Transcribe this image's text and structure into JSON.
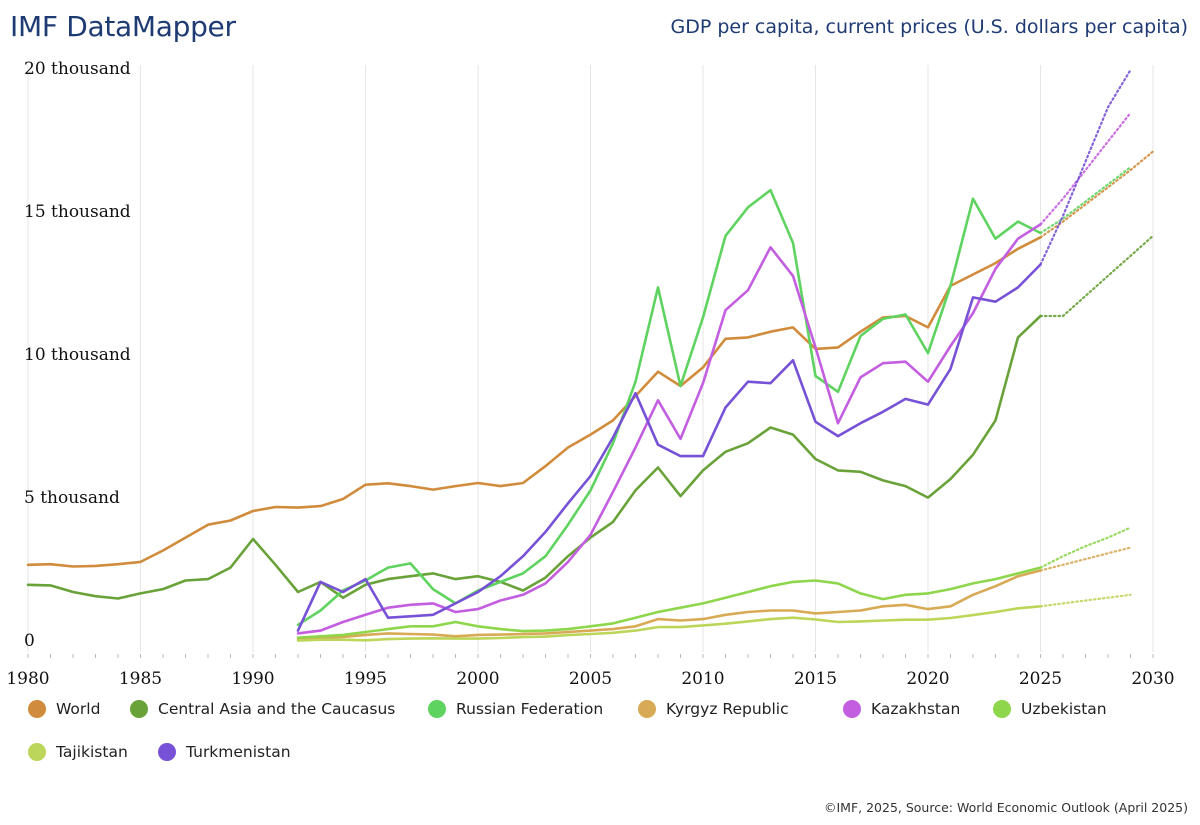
{
  "header": {
    "brand": "IMF DataMapper",
    "title": "GDP per capita, current prices (U.S. dollars per capita)"
  },
  "footer": {
    "credit": "©IMF, 2025, Source: World Economic Outlook (April 2025)"
  },
  "chart_data": {
    "type": "line",
    "xlim": [
      1980,
      2030
    ],
    "ylim": [
      0,
      20000
    ],
    "x_ticks": [
      "1980",
      "1985",
      "1990",
      "1995",
      "2000",
      "2005",
      "2010",
      "2015",
      "2020",
      "2025",
      "2030"
    ],
    "y_ticks": [
      {
        "value": 0,
        "label": "0"
      },
      {
        "value": 5000,
        "label": "5 thousand"
      },
      {
        "value": 10000,
        "label": "10 thousand"
      },
      {
        "value": 15000,
        "label": "15 thousand"
      },
      {
        "value": 20000,
        "label": "20 thousand"
      }
    ],
    "grid": "vertical",
    "legend_position": "bottom",
    "projection_start": 2025,
    "series": [
      {
        "name": "World",
        "color": "#d08c3c",
        "start": 1980,
        "values": [
          2700,
          2720,
          2640,
          2660,
          2720,
          2800,
          3200,
          3650,
          4100,
          4250,
          4580,
          4720,
          4700,
          4750,
          5000,
          5500,
          5550,
          5450,
          5330,
          5450,
          5560,
          5450,
          5560,
          6150,
          6800,
          7250,
          7750,
          8600,
          9450,
          8950,
          9600,
          10600,
          10650,
          10850,
          11000,
          10250,
          10300,
          10850,
          11350,
          11400,
          11000,
          12450,
          12850,
          13250,
          13750,
          14150,
          14700,
          15300,
          15900,
          16500,
          17150
        ]
      },
      {
        "name": "Central Asia and the Caucasus",
        "color": "#6aa23a",
        "start": 1980,
        "values": [
          2000,
          1980,
          1750,
          1600,
          1520,
          1700,
          1850,
          2150,
          2200,
          2600,
          3600,
          2700,
          1750,
          2100,
          1550,
          2000,
          2200,
          2300,
          2400,
          2200,
          2300,
          2100,
          1800,
          2250,
          3000,
          3650,
          4200,
          5300,
          6100,
          5100,
          6000,
          6650,
          6950,
          7500,
          7250,
          6400,
          6000,
          5950,
          5650,
          5450,
          5050,
          5700,
          6550,
          7750,
          10650,
          11400,
          11400,
          12100,
          12800,
          13500,
          14200
        ]
      },
      {
        "name": "Russian Federation",
        "color": "#5fd35f",
        "start": 1992,
        "values": [
          600,
          1100,
          1800,
          2150,
          2600,
          2750,
          1850,
          1350,
          1800,
          2100,
          2400,
          3000,
          4100,
          5300,
          6950,
          9100,
          12400,
          8950,
          11350,
          14200,
          15200,
          15800,
          13950,
          9300,
          8750,
          10700,
          11300,
          11450,
          10100,
          12450,
          15500,
          14100,
          14700,
          14300,
          14800,
          15400,
          16000,
          16600
        ]
      },
      {
        "name": "Kyrgyz Republic",
        "color": "#d8aa55",
        "start": 1992,
        "values": [
          100,
          150,
          180,
          250,
          300,
          280,
          260,
          200,
          250,
          260,
          280,
          300,
          350,
          400,
          450,
          550,
          800,
          750,
          800,
          950,
          1050,
          1100,
          1100,
          1000,
          1050,
          1100,
          1250,
          1300,
          1150,
          1250,
          1650,
          1950,
          2300,
          2500,
          2700,
          2900,
          3100,
          3300
        ]
      },
      {
        "name": "Kazakhstan",
        "color": "#c35ee0",
        "start": 1992,
        "values": [
          300,
          400,
          700,
          950,
          1200,
          1300,
          1350,
          1050,
          1150,
          1450,
          1650,
          2050,
          2800,
          3750,
          5250,
          6800,
          8450,
          7100,
          9050,
          11600,
          12300,
          13800,
          12800,
          10300,
          7650,
          9250,
          9750,
          9800,
          9100,
          10350,
          11500,
          13050,
          14100,
          14600,
          15500,
          16500,
          17500,
          18500
        ]
      },
      {
        "name": "Uzbekistan",
        "color": "#8ed64c",
        "start": 1992,
        "values": [
          150,
          200,
          250,
          350,
          450,
          550,
          550,
          700,
          550,
          450,
          380,
          400,
          450,
          550,
          650,
          850,
          1050,
          1200,
          1350,
          1550,
          1750,
          1950,
          2100,
          2150,
          2050,
          1700,
          1500,
          1650,
          1700,
          1850,
          2050,
          2200,
          2400,
          2600,
          3000,
          3350,
          3650,
          4000
        ]
      },
      {
        "name": "Tajikistan",
        "color": "#bcd65a",
        "start": 1992,
        "values": [
          50,
          80,
          80,
          60,
          100,
          120,
          130,
          120,
          120,
          140,
          170,
          190,
          240,
          280,
          320,
          400,
          520,
          520,
          580,
          640,
          720,
          800,
          850,
          790,
          700,
          720,
          750,
          780,
          780,
          840,
          940,
          1050,
          1180,
          1250,
          1350,
          1450,
          1550,
          1650
        ]
      },
      {
        "name": "Turkmenistan",
        "color": "#7751d6",
        "start": 1992,
        "values": [
          400,
          2100,
          1750,
          2200,
          850,
          900,
          950,
          1350,
          1750,
          2300,
          3000,
          3850,
          4850,
          5800,
          7150,
          8700,
          6900,
          6500,
          6500,
          8200,
          9100,
          9050,
          9850,
          7700,
          7200,
          7650,
          8050,
          8500,
          8300,
          9550,
          12050,
          11900,
          12400,
          13200,
          14900,
          16800,
          18700,
          20000
        ]
      }
    ]
  }
}
